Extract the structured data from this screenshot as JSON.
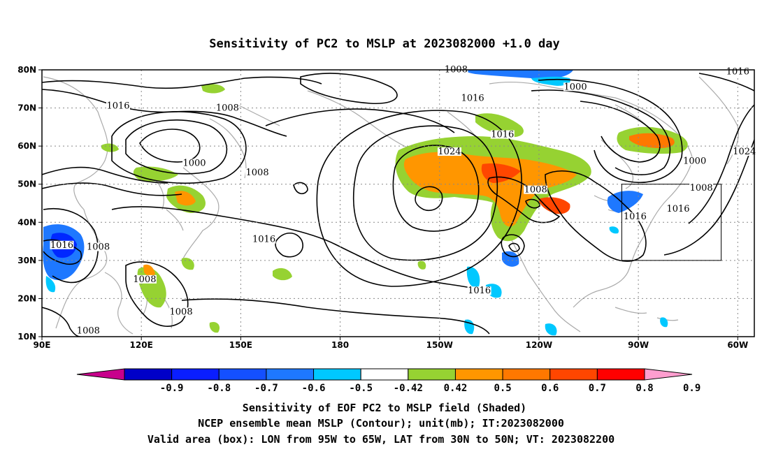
{
  "title": "Sensitivity of PC2 to MSLP at 2023082000 +1.0 day",
  "map": {
    "lon_range": [
      90,
      305
    ],
    "lat_range": [
      10,
      80
    ],
    "lat_ticks": [
      {
        "lat": 80,
        "label": "80N"
      },
      {
        "lat": 70,
        "label": "70N"
      },
      {
        "lat": 60,
        "label": "60N"
      },
      {
        "lat": 50,
        "label": "50N"
      },
      {
        "lat": 40,
        "label": "40N"
      },
      {
        "lat": 30,
        "label": "30N"
      },
      {
        "lat": 20,
        "label": "20N"
      },
      {
        "lat": 10,
        "label": "10N"
      }
    ],
    "lon_ticks": [
      {
        "lon": 90,
        "label": "90E"
      },
      {
        "lon": 120,
        "label": "120E"
      },
      {
        "lon": 150,
        "label": "150E"
      },
      {
        "lon": 180,
        "label": "180"
      },
      {
        "lon": 210,
        "label": "150W"
      },
      {
        "lon": 240,
        "label": "120W"
      },
      {
        "lon": 270,
        "label": "90W"
      },
      {
        "lon": 300,
        "label": "60W"
      }
    ],
    "valid_box": {
      "lon_min": 265,
      "lon_max": 295,
      "lat_min": 30,
      "lat_max": 50
    },
    "contour_labels": [
      {
        "text": "1008",
        "lon": 215,
        "lat": 79.5
      },
      {
        "text": "1016",
        "lon": 300,
        "lat": 79
      },
      {
        "text": "1000",
        "lon": 251,
        "lat": 75
      },
      {
        "text": "1016",
        "lon": 113,
        "lat": 70
      },
      {
        "text": "1008",
        "lon": 146,
        "lat": 69.5
      },
      {
        "text": "1016",
        "lon": 220,
        "lat": 72
      },
      {
        "text": "1016",
        "lon": 229,
        "lat": 62.5
      },
      {
        "text": "1024",
        "lon": 213,
        "lat": 58
      },
      {
        "text": "1024",
        "lon": 302,
        "lat": 58
      },
      {
        "text": "1000",
        "lon": 136,
        "lat": 55
      },
      {
        "text": "1008",
        "lon": 155,
        "lat": 52.5
      },
      {
        "text": "1000",
        "lon": 287,
        "lat": 55.5
      },
      {
        "text": "1008",
        "lon": 289,
        "lat": 48.5
      },
      {
        "text": "1008",
        "lon": 239,
        "lat": 48
      },
      {
        "text": "1016",
        "lon": 269,
        "lat": 41
      },
      {
        "text": "1016",
        "lon": 282,
        "lat": 43
      },
      {
        "text": "1016",
        "lon": 157,
        "lat": 35
      },
      {
        "text": "1016",
        "lon": 96,
        "lat": 33.5
      },
      {
        "text": "1008",
        "lon": 107,
        "lat": 33
      },
      {
        "text": "1008",
        "lon": 121,
        "lat": 24.5
      },
      {
        "text": "1016",
        "lon": 222,
        "lat": 21.5
      },
      {
        "text": "1008",
        "lon": 132,
        "lat": 16
      },
      {
        "text": "1008",
        "lon": 104,
        "lat": 11
      }
    ]
  },
  "shading": {
    "colors": {
      "neg_0_9": "#a000c8",
      "neg_0_8": "#1400c8",
      "neg_0_7": "#0028ff",
      "neg_0_6": "#1450ff",
      "neg_0_5": "#1e78ff",
      "neg_0_42": "#00c8ff",
      "white": "#ffffff",
      "pos_0_42": "#96d232",
      "pos_0_5": "#ff9600",
      "pos_0_6": "#ff7800",
      "pos_0_7": "#ff4600",
      "pos_0_8": "#ff1e00",
      "pos_0_9": "#ff0000",
      "over": "#ffa0c8"
    }
  },
  "colorbar": {
    "labels": [
      "-0.9",
      "-0.8",
      "-0.7",
      "-0.6",
      "-0.5",
      "-0.42",
      "0.42",
      "0.5",
      "0.6",
      "0.7",
      "0.8",
      "0.9"
    ],
    "colors": [
      "#0000c8",
      "#0a1eff",
      "#1450ff",
      "#1e78ff",
      "#00c8ff",
      "#ffffff",
      "#96d232",
      "#ff9600",
      "#ff7800",
      "#ff4600",
      "#ff0000"
    ],
    "low_end_color": "#c8008c",
    "high_end_color": "#ff9ecf"
  },
  "caption": [
    "Sensitivity of EOF PC2 to MSLP field (Shaded)",
    "NCEP ensemble mean MSLP (Contour); unit(mb); IT:2023082000",
    "Valid area (box): LON from 95W to 65W, LAT from 30N to 50N; VT: 2023082200"
  ]
}
